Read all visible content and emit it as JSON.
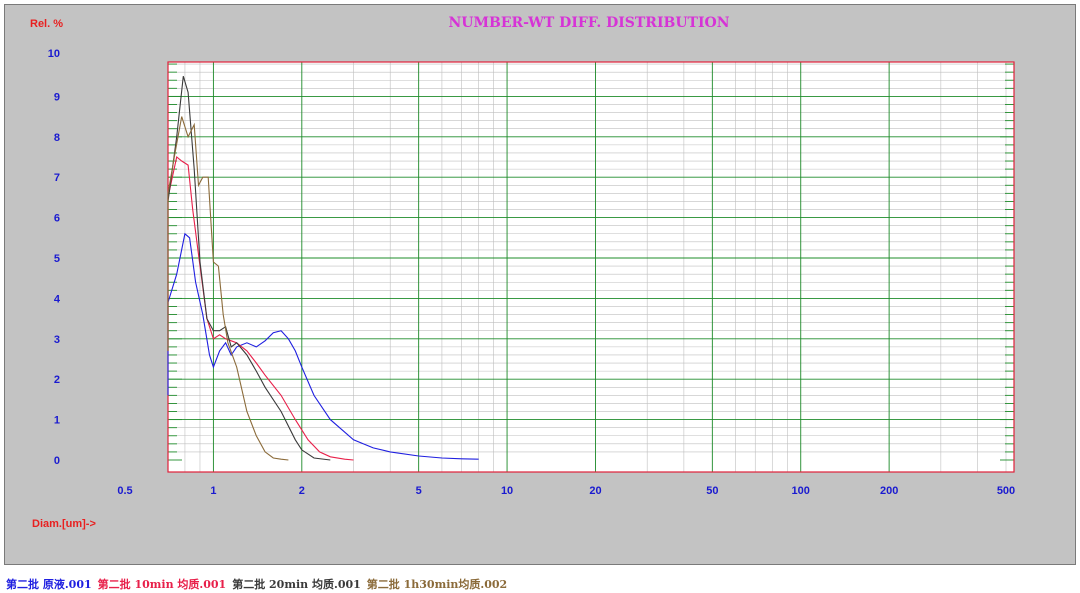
{
  "chart_data": {
    "type": "line",
    "title": "NUMBER-WT DIFF.  DISTRIBUTION",
    "ylabel": "Rel. %",
    "xlabel": "Diam.[um]->",
    "x_scale": "log",
    "xlim": [
      0.5,
      500
    ],
    "ylim": [
      0,
      10
    ],
    "x_ticks": [
      "0.5",
      "1",
      "2",
      "5",
      "10",
      "20",
      "50",
      "100",
      "200",
      "500"
    ],
    "y_ticks": [
      "0",
      "1",
      "2",
      "3",
      "4",
      "5",
      "6",
      "7",
      "8",
      "9",
      "10"
    ],
    "grid": true,
    "series": [
      {
        "name": "第二批 原液.001",
        "color": "#1f1fe0",
        "x": [
          0.6,
          0.65,
          0.7,
          0.75,
          0.8,
          0.83,
          0.87,
          0.92,
          0.97,
          1.0,
          1.05,
          1.1,
          1.15,
          1.2,
          1.3,
          1.4,
          1.5,
          1.6,
          1.7,
          1.8,
          1.9,
          2.0,
          2.2,
          2.5,
          3.0,
          3.5,
          4.0,
          5.0,
          6.0,
          7.0,
          8.0
        ],
        "y": [
          1.6,
          2.8,
          3.9,
          4.6,
          5.6,
          5.5,
          4.4,
          3.6,
          2.6,
          2.3,
          2.7,
          2.9,
          2.6,
          2.8,
          2.9,
          2.8,
          2.95,
          3.15,
          3.2,
          3.0,
          2.7,
          2.3,
          1.6,
          1.0,
          0.5,
          0.3,
          0.2,
          0.1,
          0.05,
          0.03,
          0.02
        ]
      },
      {
        "name": "第二批 10min 均质.001",
        "color": "#e8204a",
        "x": [
          0.6,
          0.65,
          0.7,
          0.75,
          0.78,
          0.82,
          0.85,
          0.9,
          0.95,
          1.0,
          1.05,
          1.1,
          1.15,
          1.2,
          1.3,
          1.4,
          1.5,
          1.7,
          1.9,
          2.1,
          2.3,
          2.5,
          2.8,
          3.0
        ],
        "y": [
          2.7,
          4.6,
          6.5,
          7.5,
          7.4,
          7.3,
          6.2,
          4.8,
          3.5,
          3.0,
          3.1,
          3.0,
          2.95,
          2.9,
          2.7,
          2.4,
          2.1,
          1.6,
          1.0,
          0.5,
          0.2,
          0.08,
          0.02,
          0.0
        ]
      },
      {
        "name": "第二批 20min 均质.001",
        "color": "#3a3a3a",
        "x": [
          0.6,
          0.65,
          0.7,
          0.75,
          0.79,
          0.82,
          0.86,
          0.9,
          0.95,
          1.0,
          1.05,
          1.1,
          1.15,
          1.2,
          1.3,
          1.4,
          1.5,
          1.7,
          1.9,
          2.0,
          2.2,
          2.5
        ],
        "y": [
          2.7,
          4.5,
          6.4,
          8.0,
          9.5,
          9.1,
          7.2,
          4.9,
          3.5,
          3.2,
          3.2,
          3.3,
          2.8,
          2.9,
          2.6,
          2.2,
          1.8,
          1.2,
          0.5,
          0.25,
          0.05,
          0.0
        ]
      },
      {
        "name": "第二批 1h30min均质.002",
        "color": "#8b6b3a",
        "x": [
          0.6,
          0.63,
          0.66,
          0.7,
          0.74,
          0.78,
          0.82,
          0.86,
          0.89,
          0.92,
          0.96,
          1.0,
          1.04,
          1.08,
          1.12,
          1.2,
          1.3,
          1.4,
          1.5,
          1.6,
          1.7,
          1.8
        ],
        "y": [
          2.7,
          5.2,
          5.0,
          6.6,
          7.6,
          8.5,
          8.0,
          8.3,
          6.8,
          7.0,
          7.0,
          4.9,
          4.8,
          3.6,
          2.9,
          2.3,
          1.2,
          0.6,
          0.2,
          0.05,
          0.02,
          0.0
        ]
      }
    ]
  },
  "colors": {
    "frame_bg": "#c3c3c3",
    "plot_bg": "#ffffff",
    "plot_border": "#e0203a",
    "grid_major": "#1e8c2a",
    "grid_minor": "#bfbfbf",
    "title": "#d633d6",
    "axis_label": "#e82020",
    "tick_label": "#1a1ad0"
  }
}
